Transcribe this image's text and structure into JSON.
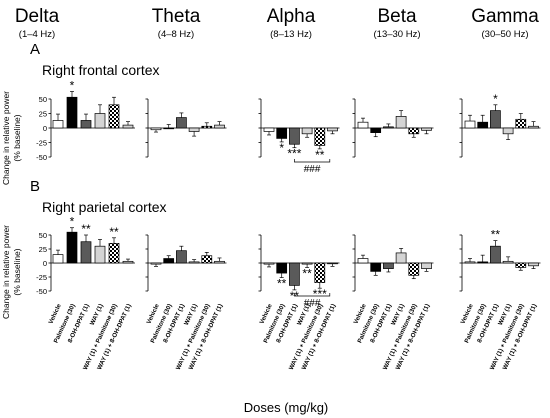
{
  "figure": {
    "bands": [
      {
        "name": "Delta",
        "range": "(1–4 Hz)"
      },
      {
        "name": "Theta",
        "range": "(4–8 Hz)"
      },
      {
        "name": "Alpha",
        "range": "(8–13 Hz)"
      },
      {
        "name": "Beta",
        "range": "(13–30 Hz)"
      },
      {
        "name": "Gamma",
        "range": "(30–50 Hz)"
      }
    ],
    "ylabel_line1": "Change in relative power",
    "ylabel_line2": "(% baseline)",
    "xlabel": "Doses (mg/kg)",
    "treatments": [
      "Vehicle",
      "Palmitone (30)",
      "8-OH-DPAT (1)",
      "WAY (1)",
      "WAY (1) + Palmitone (30)",
      "WAY (1) + 8-OH-DPAT (1)"
    ],
    "bar_styles": [
      "white",
      "black",
      "darkgray",
      "lightgray",
      "checker",
      "lightgray"
    ],
    "colors": {
      "black": "#000000",
      "darkgray": "#5a5a5a",
      "lightgray": "#d4d4d4",
      "white": "#ffffff"
    }
  },
  "chart_data": [
    {
      "type": "bar",
      "panel_letter": "A",
      "region": "Right frontal cortex",
      "ylim": [
        -50,
        50
      ],
      "yticks": [
        50,
        25,
        0,
        -25,
        -50
      ],
      "categories": [
        "Vehicle",
        "Palmitone (30)",
        "8-OH-DPAT (1)",
        "WAY (1)",
        "WAY (1) + Palmitone (30)",
        "WAY (1) + 8-OH-DPAT (1)"
      ],
      "series": [
        {
          "name": "Delta",
          "values": [
            13,
            53,
            13,
            25,
            40,
            5
          ],
          "errors": [
            11,
            10,
            11,
            15,
            13,
            6
          ],
          "annotations": [
            {
              "bar": 1,
              "text": "*",
              "pos": "above"
            }
          ]
        },
        {
          "name": "Theta",
          "values": [
            -3,
            0,
            18,
            -6,
            3,
            5
          ],
          "errors": [
            4,
            6,
            8,
            8,
            6,
            6
          ],
          "annotations": []
        },
        {
          "name": "Alpha",
          "values": [
            -6,
            -18,
            -28,
            -10,
            -30,
            -5
          ],
          "errors": [
            6,
            6,
            6,
            6,
            6,
            5
          ],
          "annotations": [
            {
              "bar": 1,
              "text": "*",
              "pos": "below"
            },
            {
              "bar": 2,
              "text": "***",
              "pos": "below"
            },
            {
              "bar": 4,
              "text": "**",
              "pos": "below"
            },
            {
              "from": 2,
              "to": 4,
              "text": "###",
              "pos": "bracket"
            }
          ]
        },
        {
          "name": "Beta",
          "values": [
            10,
            -8,
            2,
            20,
            -10,
            -4
          ],
          "errors": [
            7,
            7,
            5,
            10,
            6,
            6
          ],
          "annotations": []
        },
        {
          "name": "Gamma",
          "values": [
            12,
            10,
            30,
            -10,
            15,
            3
          ],
          "errors": [
            10,
            12,
            10,
            10,
            10,
            8
          ],
          "annotations": [
            {
              "bar": 2,
              "text": "*",
              "pos": "above"
            }
          ]
        }
      ]
    },
    {
      "type": "bar",
      "panel_letter": "B",
      "region": "Right parietal cortex",
      "ylim": [
        -50,
        50
      ],
      "yticks": [
        50,
        25,
        0,
        -25,
        -50
      ],
      "categories": [
        "Vehicle",
        "Palmitone (30)",
        "8-OH-DPAT (1)",
        "WAY (1)",
        "WAY (1) + Palmitone (30)",
        "WAY (1) + 8-OH-DPAT (1)"
      ],
      "series": [
        {
          "name": "Delta",
          "values": [
            15,
            55,
            38,
            30,
            35,
            3
          ],
          "errors": [
            8,
            8,
            12,
            12,
            10,
            4
          ],
          "annotations": [
            {
              "bar": 1,
              "text": "*",
              "pos": "above"
            },
            {
              "bar": 2,
              "text": "**",
              "pos": "above"
            },
            {
              "bar": 4,
              "text": "**",
              "pos": "above"
            }
          ]
        },
        {
          "name": "Theta",
          "values": [
            -2,
            8,
            22,
            2,
            13,
            3
          ],
          "errors": [
            4,
            5,
            8,
            4,
            6,
            6
          ],
          "annotations": []
        },
        {
          "name": "Alpha",
          "values": [
            -2,
            -18,
            -40,
            -2,
            -35,
            -1
          ],
          "errors": [
            5,
            8,
            8,
            6,
            10,
            5
          ],
          "annotations": [
            {
              "bar": 1,
              "text": "**",
              "pos": "below"
            },
            {
              "bar": 2,
              "text": "**",
              "pos": "below"
            },
            {
              "bar": 4,
              "text": "***",
              "pos": "below"
            },
            {
              "bar": 3,
              "text": "**",
              "pos": "below"
            },
            {
              "from": 2,
              "to": 4,
              "text": "###",
              "pos": "bracket"
            }
          ]
        },
        {
          "name": "Beta",
          "values": [
            8,
            -15,
            -10,
            18,
            -22,
            -10
          ],
          "errors": [
            6,
            7,
            6,
            8,
            6,
            5
          ],
          "annotations": []
        },
        {
          "name": "Gamma",
          "values": [
            2,
            2,
            30,
            3,
            -8,
            -5
          ],
          "errors": [
            6,
            12,
            10,
            8,
            5,
            5
          ],
          "annotations": [
            {
              "bar": 2,
              "text": "**",
              "pos": "above"
            }
          ]
        }
      ]
    }
  ]
}
